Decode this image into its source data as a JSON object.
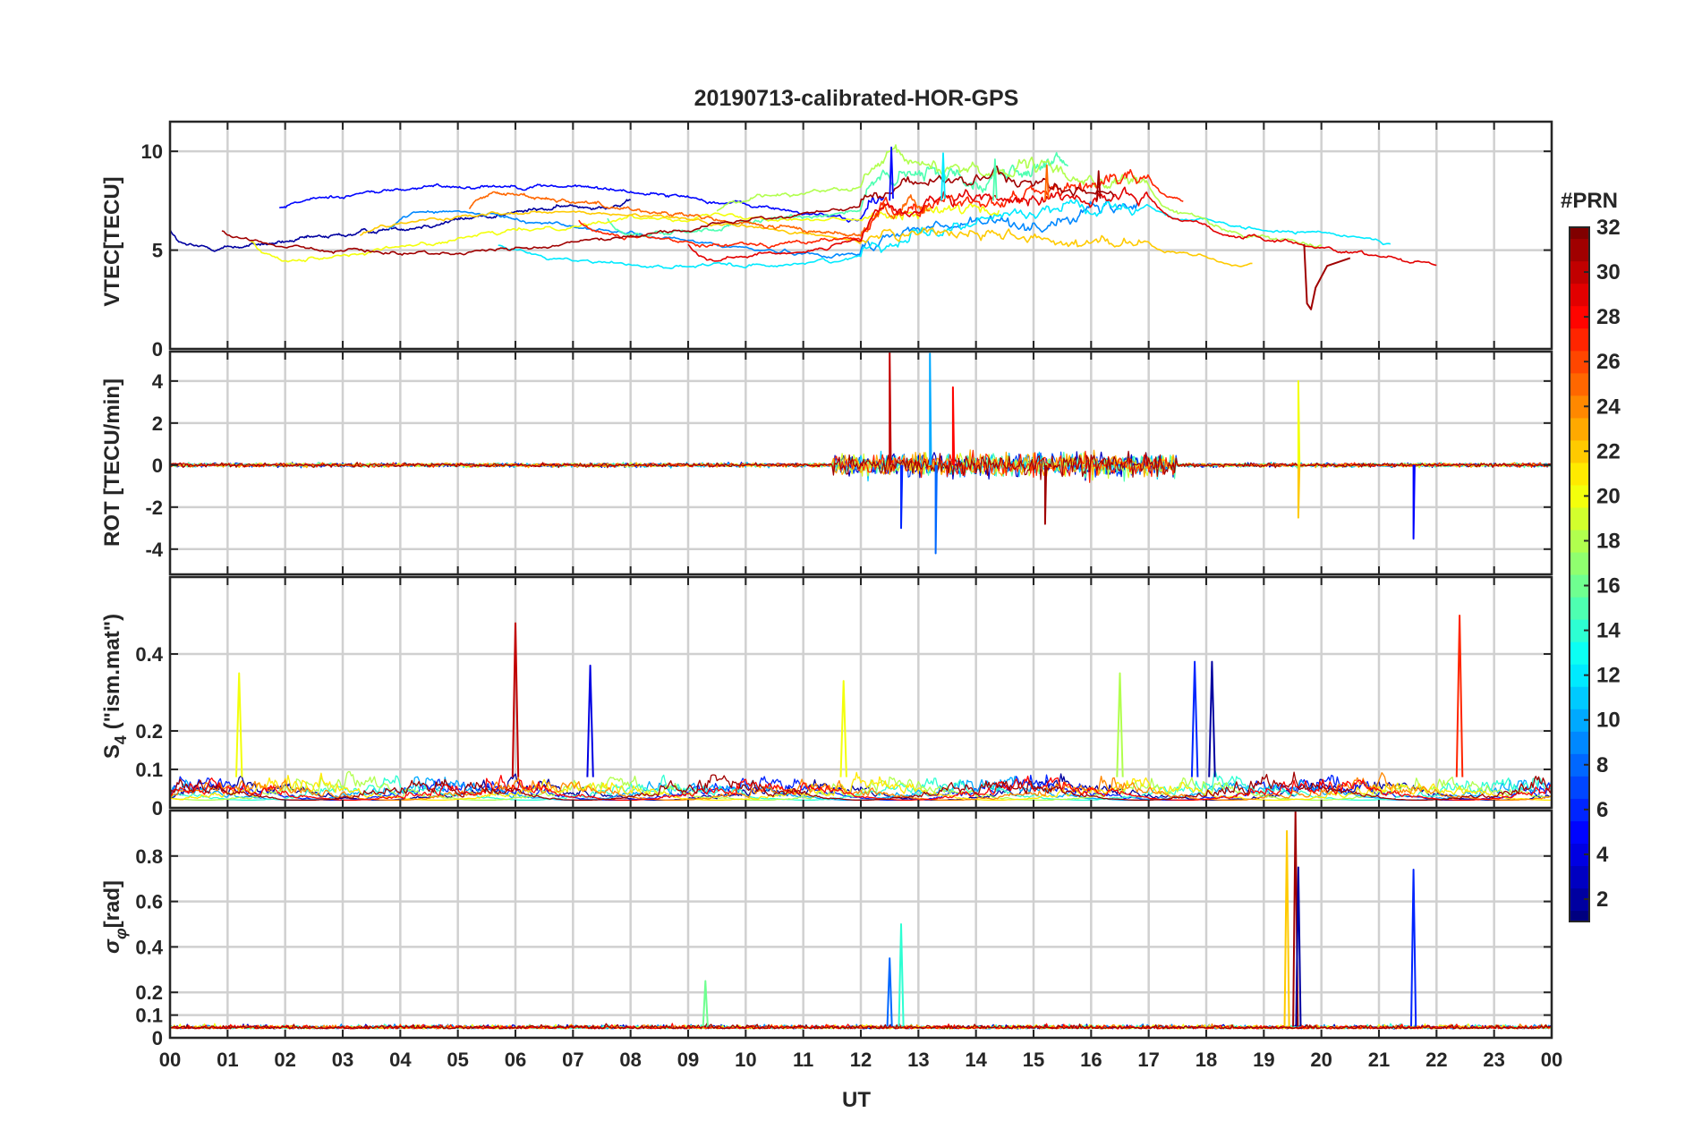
{
  "figure": {
    "title": "20190713-calibrated-HOR-GPS",
    "xlabel": "UT",
    "colorbar_label": "#PRN"
  },
  "chart_data": [
    {
      "type": "line",
      "panel": "vtec",
      "ylabel": "VTEC[TECU]",
      "ylim": [
        0,
        11.5
      ],
      "yticks": [
        0,
        5,
        10
      ],
      "yticklabels": [
        "0",
        "5",
        "10"
      ],
      "grid": true,
      "xlim": [
        0,
        24
      ],
      "series_prn": [
        2,
        5,
        9,
        12,
        15,
        18,
        20,
        22,
        25,
        27,
        29,
        31
      ],
      "series_peak_prn": [
        5,
        12,
        15,
        25,
        31
      ],
      "description_of_series": "Vertical TEC per satellite track; values roughly 5-8 TECU, up to ~10 around 12-17 UT, dropping near 2 at 19.8 UT"
    },
    {
      "type": "line",
      "panel": "rot",
      "ylabel": "ROT [TECU/min]",
      "ylim": [
        -5.2,
        5.4
      ],
      "yticks": [
        -4,
        -2,
        0,
        2,
        4
      ],
      "yticklabels": [
        "-4",
        "-2",
        "0",
        "2",
        "4"
      ],
      "grid": true,
      "xlim": [
        0,
        24
      ],
      "bursts": [
        {
          "t": 12.5,
          "value": 5.4,
          "prn": 30
        },
        {
          "t": 12.7,
          "value": -3.0,
          "prn": 6
        },
        {
          "t": 13.2,
          "value": 5.3,
          "prn": 10
        },
        {
          "t": 13.3,
          "value": -4.2,
          "prn": 8
        },
        {
          "t": 13.6,
          "value": 3.7,
          "prn": 28
        },
        {
          "t": 15.2,
          "value": -2.8,
          "prn": 31
        },
        {
          "t": 19.6,
          "value": 4.0,
          "prn": 20
        },
        {
          "t": 19.6,
          "value": -2.5,
          "prn": 22
        },
        {
          "t": 21.6,
          "value": -3.5,
          "prn": 5
        }
      ]
    },
    {
      "type": "line",
      "panel": "s4",
      "ylabel": "S4 (\"ism.mat\")",
      "ylabel_main": "S",
      "ylabel_sub": "4",
      "ylabel_rest": " (\"ism.mat\")",
      "ylim": [
        0,
        0.6
      ],
      "yticks": [
        0,
        0.1,
        0.2,
        0.4
      ],
      "yticklabels": [
        "0",
        "0.1",
        "0.2",
        "0.4"
      ],
      "grid": true,
      "xlim": [
        0,
        24
      ],
      "peaks": [
        {
          "t": 6.0,
          "value": 0.48,
          "prn": 30
        },
        {
          "t": 1.2,
          "value": 0.35,
          "prn": 20
        },
        {
          "t": 7.3,
          "value": 0.37,
          "prn": 4
        },
        {
          "t": 11.7,
          "value": 0.33,
          "prn": 20
        },
        {
          "t": 16.5,
          "value": 0.35,
          "prn": 18
        },
        {
          "t": 17.8,
          "value": 0.38,
          "prn": 6
        },
        {
          "t": 18.1,
          "value": 0.38,
          "prn": 2
        },
        {
          "t": 22.4,
          "value": 0.5,
          "prn": 27
        }
      ]
    },
    {
      "type": "line",
      "panel": "sigma_phi",
      "ylabel": "σφ[rad]",
      "ylabel_main": "σ",
      "ylabel_sub": "φ",
      "ylabel_rest": "[rad]",
      "ylim": [
        0,
        1.0
      ],
      "yticks": [
        0,
        0.1,
        0.2,
        0.4,
        0.6,
        0.8
      ],
      "yticklabels": [
        "0",
        "0.1",
        "0.2",
        "0.4",
        "0.6",
        "0.8"
      ],
      "grid": true,
      "xlim": [
        0,
        24
      ],
      "peaks": [
        {
          "t": 12.7,
          "value": 0.5,
          "prn": 14
        },
        {
          "t": 12.5,
          "value": 0.35,
          "prn": 8
        },
        {
          "t": 9.3,
          "value": 0.25,
          "prn": 16
        },
        {
          "t": 19.4,
          "value": 0.91,
          "prn": 22
        },
        {
          "t": 19.55,
          "value": 1.0,
          "prn": 31
        },
        {
          "t": 19.6,
          "value": 0.75,
          "prn": 2
        },
        {
          "t": 21.6,
          "value": 0.74,
          "prn": 6
        }
      ]
    }
  ],
  "xaxis": {
    "ticks": [
      0,
      1,
      2,
      3,
      4,
      5,
      6,
      7,
      8,
      9,
      10,
      11,
      12,
      13,
      14,
      15,
      16,
      17,
      18,
      19,
      20,
      21,
      22,
      23,
      24
    ],
    "ticklabels": [
      "00",
      "01",
      "02",
      "03",
      "04",
      "05",
      "06",
      "07",
      "08",
      "09",
      "10",
      "11",
      "12",
      "13",
      "14",
      "15",
      "16",
      "17",
      "18",
      "19",
      "20",
      "21",
      "22",
      "23",
      "00"
    ]
  },
  "colorbar": {
    "colormap": "jet",
    "range": [
      1,
      32
    ],
    "ticks": [
      2,
      4,
      6,
      8,
      10,
      12,
      14,
      16,
      18,
      20,
      22,
      24,
      26,
      28,
      30,
      32
    ],
    "ticklabels": [
      "2",
      "4",
      "6",
      "8",
      "10",
      "12",
      "14",
      "16",
      "18",
      "20",
      "22",
      "24",
      "26",
      "28",
      "30",
      "32"
    ]
  }
}
